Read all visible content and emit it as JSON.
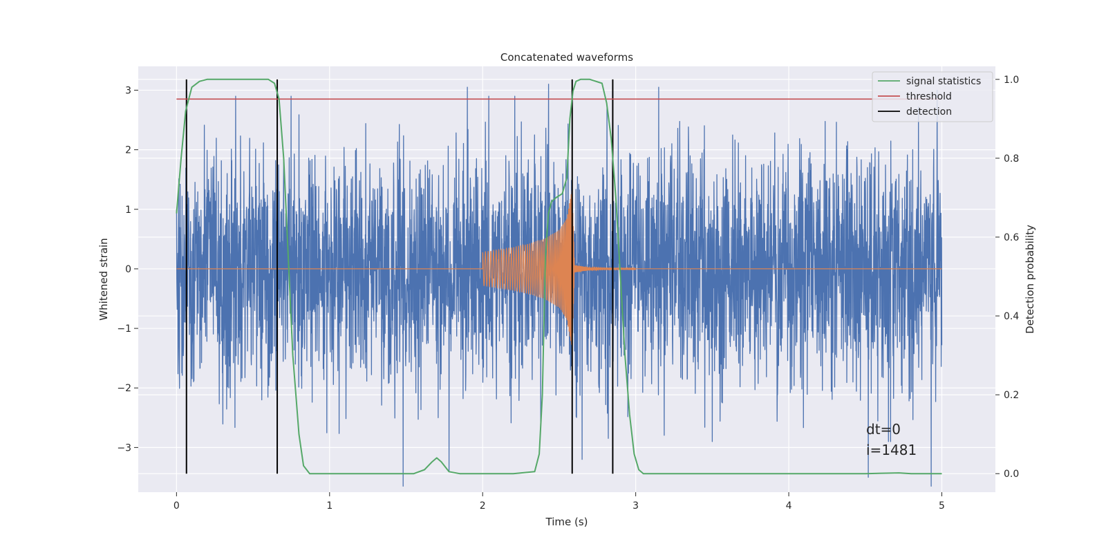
{
  "chart_data": {
    "type": "line",
    "title": "Concatenated waveforms",
    "xlabel": "Time (s)",
    "ylabel": "Whitened strain",
    "ylabel_right": "Detection probability",
    "xlim": [
      -0.25,
      5.35
    ],
    "ylim": [
      -3.75,
      3.4
    ],
    "ylim_right": [
      -0.047,
      1.033
    ],
    "x_ticks": [
      0,
      1,
      2,
      3,
      4,
      5
    ],
    "y_ticks": [
      -3,
      -2,
      -1,
      0,
      1,
      2,
      3
    ],
    "y_ticks_right": [
      0.0,
      0.2,
      0.4,
      0.6,
      0.8,
      1.0
    ],
    "x_tick_labels": [
      "0",
      "1",
      "2",
      "3",
      "4",
      "5"
    ],
    "y_tick_labels": [
      "−3",
      "−2",
      "−1",
      "0",
      "1",
      "2",
      "3"
    ],
    "y_tick_labels_right": [
      "0.0",
      "0.2",
      "0.4",
      "0.6",
      "0.8",
      "1.0"
    ],
    "grid": true,
    "legend_position": "top-right",
    "colors": {
      "background": "#eaeaf2",
      "strain": "#4c72b0",
      "template": "#dd8452",
      "signal_statistics": "#55a868",
      "threshold": "#c44e52",
      "detection": "#000000"
    },
    "series": [
      {
        "name": "signal statistics",
        "axis": "right",
        "x": [
          0.0,
          0.03,
          0.06,
          0.1,
          0.15,
          0.2,
          0.3,
          0.5,
          0.6,
          0.64,
          0.67,
          0.7,
          0.73,
          0.76,
          0.8,
          0.83,
          0.87,
          1.0,
          1.2,
          1.4,
          1.55,
          1.62,
          1.67,
          1.7,
          1.73,
          1.78,
          1.85,
          2.0,
          2.2,
          2.34,
          2.37,
          2.39,
          2.41,
          2.43,
          2.45,
          2.48,
          2.52,
          2.55,
          2.57,
          2.59,
          2.61,
          2.64,
          2.7,
          2.78,
          2.81,
          2.84,
          2.87,
          2.9,
          2.93,
          2.96,
          2.99,
          3.02,
          3.05,
          3.2,
          4.0,
          4.5,
          4.72,
          4.8,
          5.0
        ],
        "y": [
          0.66,
          0.8,
          0.92,
          0.98,
          0.995,
          1.0,
          1.0,
          1.0,
          1.0,
          0.99,
          0.95,
          0.8,
          0.55,
          0.3,
          0.1,
          0.02,
          0.0,
          0.0,
          0.0,
          0.0,
          0.0,
          0.01,
          0.03,
          0.04,
          0.03,
          0.005,
          0.0,
          0.0,
          0.0,
          0.005,
          0.05,
          0.2,
          0.55,
          0.66,
          0.69,
          0.7,
          0.71,
          0.75,
          0.9,
          0.97,
          0.995,
          1.0,
          1.0,
          0.99,
          0.94,
          0.85,
          0.7,
          0.5,
          0.3,
          0.15,
          0.05,
          0.01,
          0.0,
          0.0,
          0.0,
          0.0,
          0.002,
          0.0,
          0.0
        ]
      },
      {
        "name": "threshold",
        "axis": "right",
        "x": [
          0.0,
          5.0
        ],
        "y": [
          0.95,
          0.95
        ]
      },
      {
        "name": "detection",
        "axis": "right",
        "vlines_x": [
          0.065,
          0.658,
          2.585,
          2.85
        ],
        "y_range": [
          0.0,
          1.0
        ]
      },
      {
        "name": "",
        "axis": "left",
        "kind": "noise",
        "x_range": [
          0.0,
          5.0
        ],
        "typical_amplitude": 1.0,
        "peaks": [
          {
            "x": 1.48,
            "y": -3.65
          },
          {
            "x": 1.71,
            "y": -2.5
          },
          {
            "x": 1.78,
            "y": -3.4
          },
          {
            "x": 1.9,
            "y": 3.05
          },
          {
            "x": 2.43,
            "y": 3.1
          },
          {
            "x": 2.65,
            "y": -3.2
          },
          {
            "x": 3.15,
            "y": 3.05
          },
          {
            "x": 4.52,
            "y": -3.5
          },
          {
            "x": 4.93,
            "y": -3.65
          },
          {
            "x": 4.97,
            "y": 3.0
          }
        ]
      },
      {
        "name": "",
        "axis": "left",
        "kind": "chirp",
        "x": [
          0.0,
          2.0,
          2.0,
          2.1,
          2.2,
          2.3,
          2.4,
          2.5,
          2.55,
          2.585,
          2.6,
          2.7,
          2.8,
          5.0
        ],
        "envelope": [
          0.0,
          0.0,
          0.28,
          0.32,
          0.36,
          0.42,
          0.5,
          0.65,
          0.85,
          1.35,
          0.06,
          0.02,
          0.01,
          0.0
        ]
      }
    ],
    "annotations": [
      "dt=0",
      "i=1481"
    ]
  }
}
